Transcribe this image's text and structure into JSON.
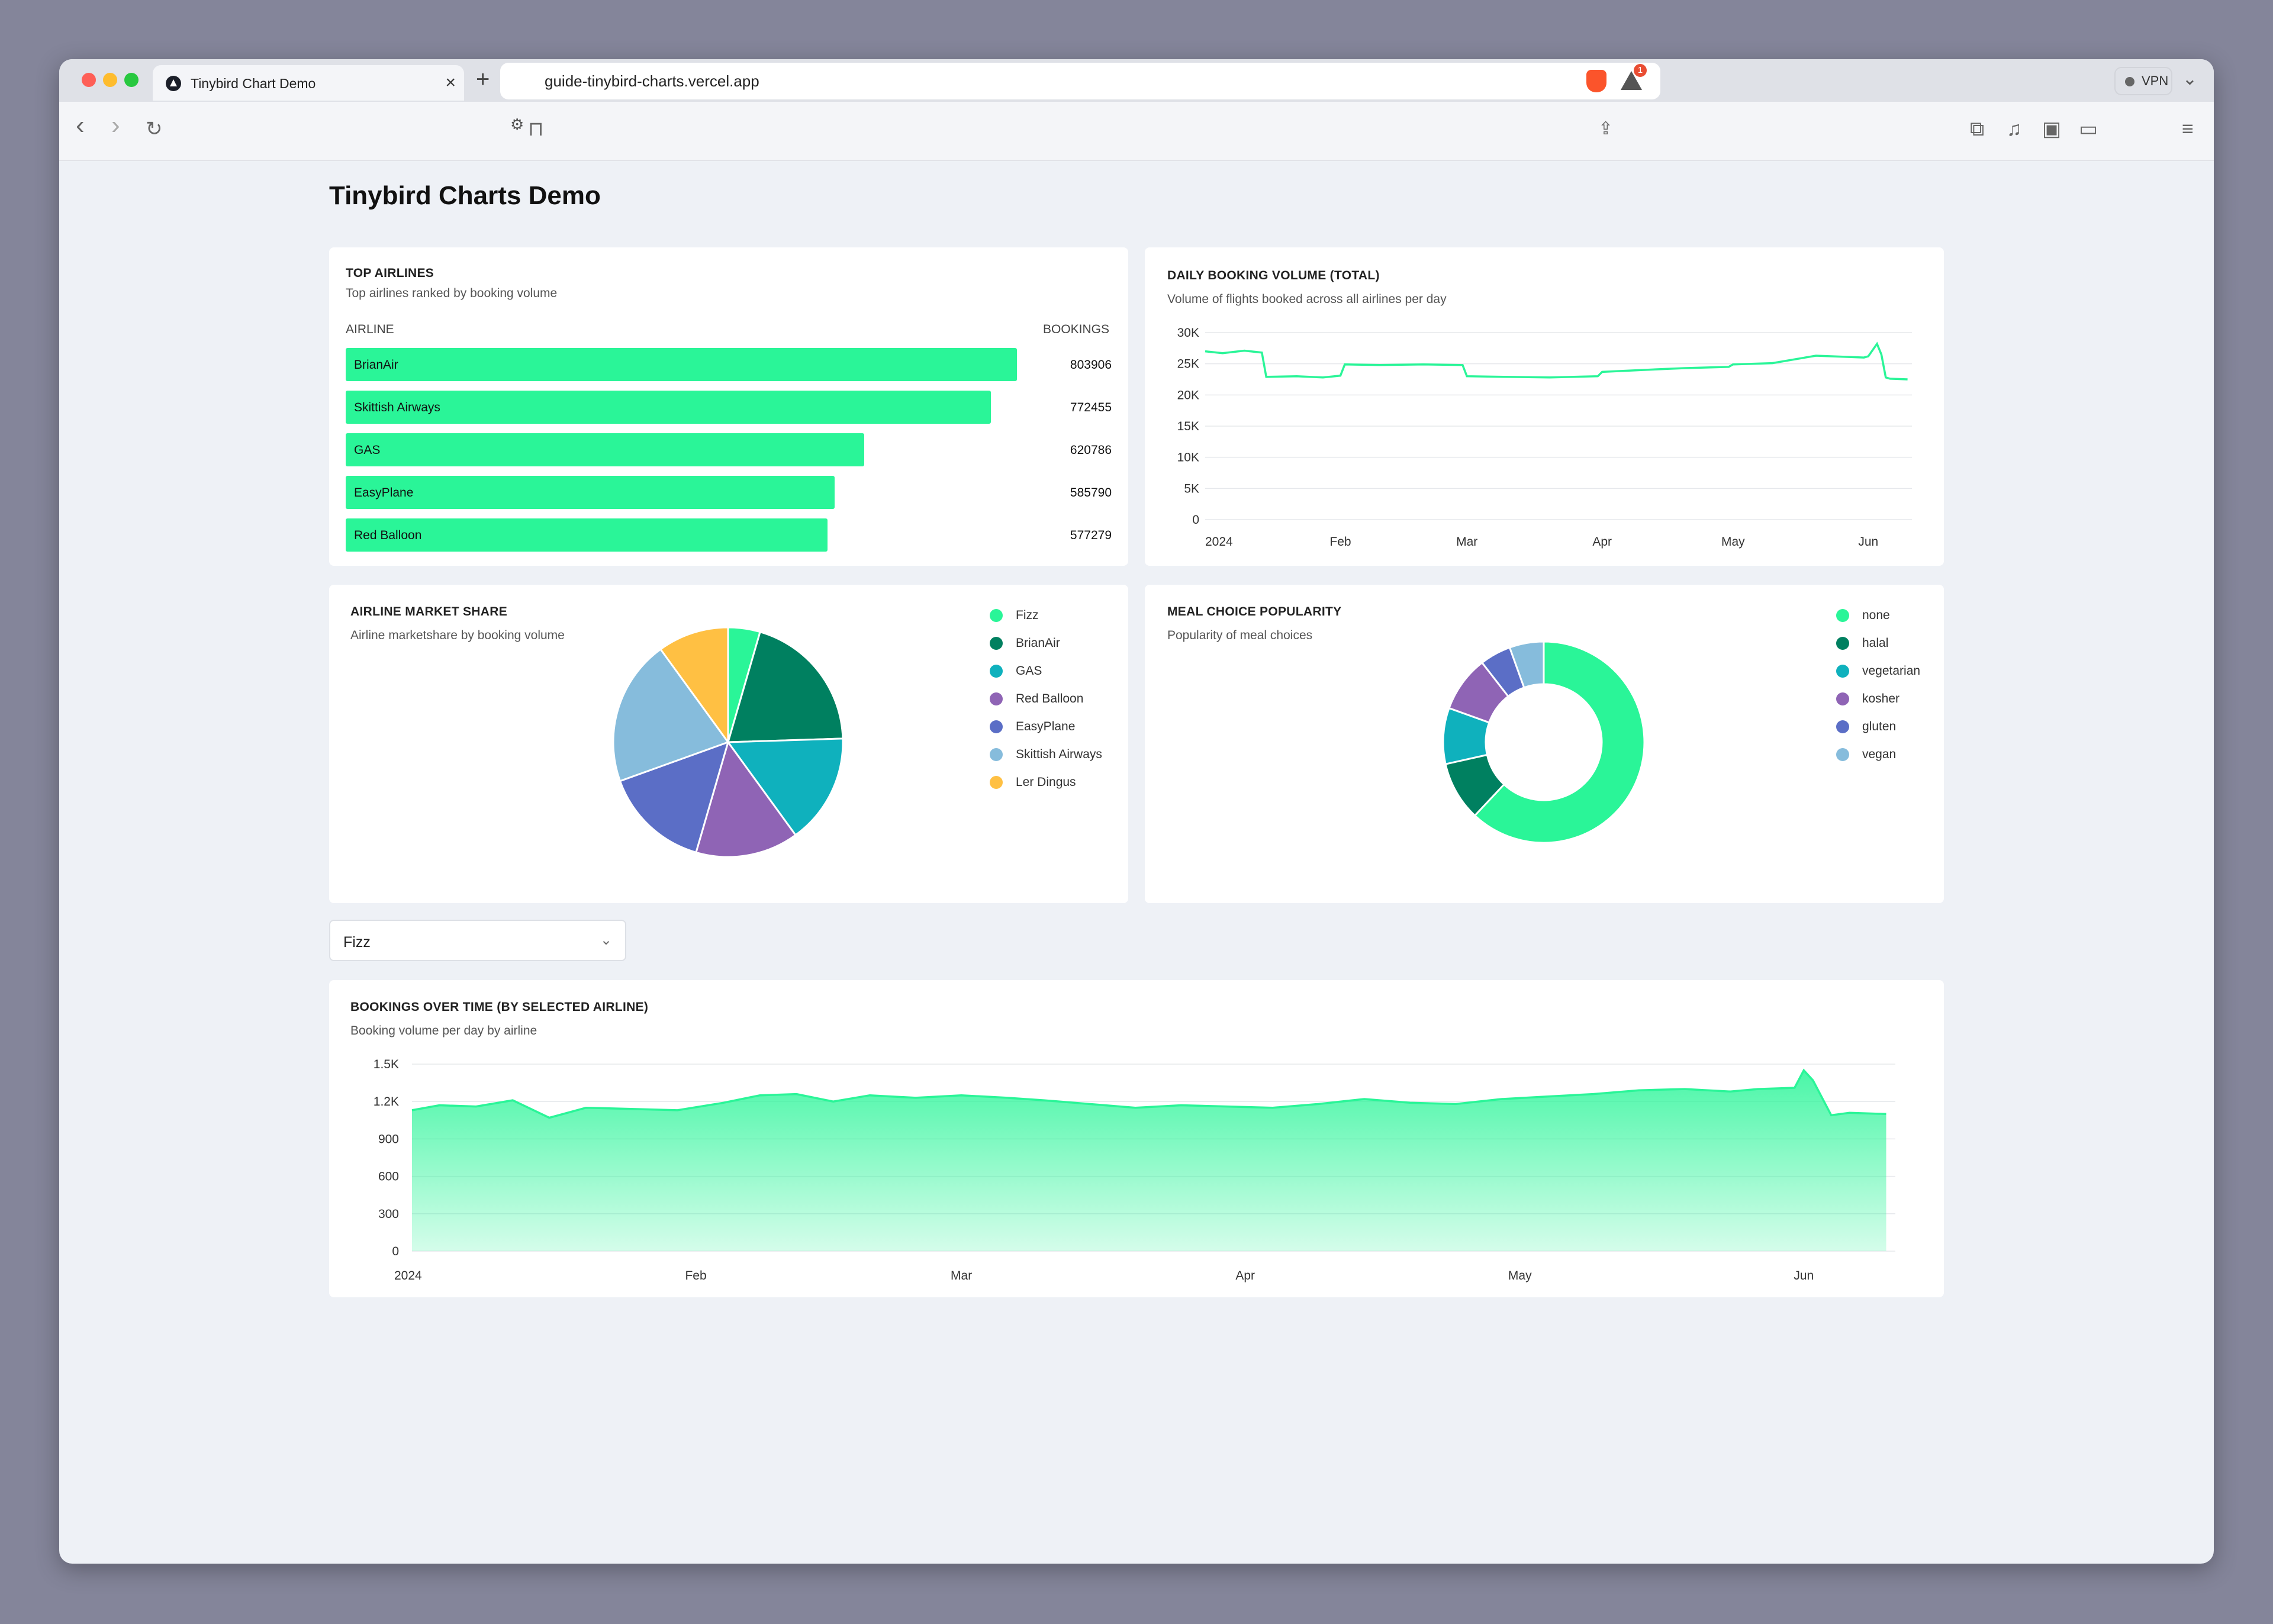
{
  "browser": {
    "tab_title": "Tinybird Chart Demo",
    "tab_close": "×",
    "new_tab": "+",
    "tab_dropdown": "⌄",
    "url": "guide-tinybird-charts.vercel.app",
    "alert_count": "1",
    "vpn_label": "VPN",
    "icons": {
      "back": "‹",
      "forward": "›",
      "reload": "↻",
      "bookmark": "⊓",
      "site_settings": "⚙",
      "share": "⇪",
      "extensions": "⧉",
      "media": "♫",
      "sidebar": "▣",
      "wallet": "▭",
      "menu": "≡"
    }
  },
  "page": {
    "title": "Tinybird Charts Demo"
  },
  "top_airlines": {
    "title": "TOP AIRLINES",
    "subtitle": "Top airlines ranked by booking volume",
    "col_airline": "AIRLINE",
    "col_bookings": "BOOKINGS",
    "rows": [
      {
        "airline": "BrianAir",
        "bookings": "803906",
        "value": 803906
      },
      {
        "airline": "Skittish Airways",
        "bookings": "772455",
        "value": 772455
      },
      {
        "airline": "GAS",
        "bookings": "620786",
        "value": 620786
      },
      {
        "airline": "EasyPlane",
        "bookings": "585790",
        "value": 585790
      },
      {
        "airline": "Red Balloon",
        "bookings": "577279",
        "value": 577279
      }
    ]
  },
  "daily_booking": {
    "title": "DAILY BOOKING VOLUME (TOTAL)",
    "subtitle": "Volume of flights booked across all airlines per day"
  },
  "market_share": {
    "title": "AIRLINE MARKET SHARE",
    "subtitle": "Airline marketshare by booking volume"
  },
  "meal_choice": {
    "title": "MEAL CHOICE POPULARITY",
    "subtitle": "Popularity of meal choices"
  },
  "selector": {
    "value": "Fizz",
    "chevron": "⌄"
  },
  "bookings_over_time": {
    "title": "BOOKINGS OVER TIME (BY SELECTED AIRLINE)",
    "subtitle": "Booking volume per day by airline"
  },
  "colors": {
    "accent": "#2af598"
  },
  "chart_data": [
    {
      "id": "top_airlines",
      "type": "bar",
      "categories": [
        "BrianAir",
        "Skittish Airways",
        "GAS",
        "EasyPlane",
        "Red Balloon"
      ],
      "values": [
        803906,
        772455,
        620786,
        585790,
        577279
      ],
      "color": "#2af598"
    },
    {
      "id": "daily_booking",
      "type": "line",
      "x_ticks": [
        "2024",
        "Feb",
        "Mar",
        "Apr",
        "May",
        "Jun"
      ],
      "y_ticks": [
        "0",
        "5K",
        "10K",
        "15K",
        "20K",
        "25K",
        "30K"
      ],
      "ylim": [
        0,
        30000
      ],
      "grid": true,
      "color": "#2af598",
      "series": [
        {
          "x": [
            "2024-01-01",
            "2024-01-05",
            "2024-01-10",
            "2024-01-14",
            "2024-01-15",
            "2024-01-22",
            "2024-01-28",
            "2024-02-01",
            "2024-02-02",
            "2024-02-10",
            "2024-02-20",
            "2024-02-29",
            "2024-03-01",
            "2024-03-10",
            "2024-03-20",
            "2024-03-31",
            "2024-04-01",
            "2024-04-10",
            "2024-04-20",
            "2024-04-30",
            "2024-05-01",
            "2024-05-10",
            "2024-05-20",
            "2024-05-31",
            "2024-06-01",
            "2024-06-03",
            "2024-06-04",
            "2024-06-05",
            "2024-06-06",
            "2024-06-10"
          ],
          "values": [
            27000,
            26700,
            27100,
            26800,
            22900,
            23000,
            22800,
            23100,
            24900,
            24800,
            24900,
            24800,
            23000,
            22900,
            22800,
            23000,
            23700,
            24000,
            24300,
            24500,
            24900,
            25100,
            26300,
            26000,
            26200,
            28200,
            26500,
            22800,
            22600,
            22500
          ]
        }
      ]
    },
    {
      "id": "market_share",
      "type": "pie",
      "labels": [
        "Fizz",
        "BrianAir",
        "GAS",
        "Red Balloon",
        "EasyPlane",
        "Skittish Airways",
        "Ler Dingus"
      ],
      "values": [
        4.5,
        20,
        15.5,
        14.5,
        15,
        20.5,
        10
      ],
      "colors": [
        "#2af598",
        "#008060",
        "#0fb1bd",
        "#8f64b5",
        "#5b6ec6",
        "#86bcdc",
        "#ffc043"
      ],
      "legend": "right"
    },
    {
      "id": "meal_choice",
      "type": "pie",
      "donut": true,
      "labels": [
        "none",
        "halal",
        "vegetarian",
        "kosher",
        "gluten",
        "vegan"
      ],
      "values": [
        62,
        9.5,
        9,
        9,
        5,
        5.5
      ],
      "colors": [
        "#2af598",
        "#008060",
        "#0fb1bd",
        "#8f64b5",
        "#5b6ec6",
        "#86bcdc"
      ],
      "legend": "right"
    },
    {
      "id": "bookings_over_time",
      "type": "area",
      "series_name": "Fizz",
      "x_ticks": [
        "2024",
        "Feb",
        "Mar",
        "Apr",
        "May",
        "Jun"
      ],
      "y_ticks": [
        "0",
        "300",
        "600",
        "900",
        "1.2K",
        "1.5K"
      ],
      "ylim": [
        0,
        1500
      ],
      "grid": true,
      "color": "#2af598",
      "series": [
        {
          "x": [
            "2024-01-01",
            "2024-01-04",
            "2024-01-08",
            "2024-01-12",
            "2024-01-16",
            "2024-01-20",
            "2024-01-25",
            "2024-01-30",
            "2024-02-04",
            "2024-02-08",
            "2024-02-12",
            "2024-02-16",
            "2024-02-20",
            "2024-02-25",
            "2024-03-01",
            "2024-03-06",
            "2024-03-10",
            "2024-03-15",
            "2024-03-20",
            "2024-03-25",
            "2024-03-30",
            "2024-04-04",
            "2024-04-09",
            "2024-04-14",
            "2024-04-19",
            "2024-04-24",
            "2024-04-29",
            "2024-05-04",
            "2024-05-09",
            "2024-05-14",
            "2024-05-19",
            "2024-05-24",
            "2024-05-27",
            "2024-05-31",
            "2024-06-01",
            "2024-06-02",
            "2024-06-04",
            "2024-06-06",
            "2024-06-10"
          ],
          "values": [
            1130,
            1170,
            1160,
            1210,
            1070,
            1150,
            1140,
            1130,
            1190,
            1250,
            1260,
            1200,
            1250,
            1230,
            1250,
            1230,
            1210,
            1180,
            1150,
            1170,
            1160,
            1150,
            1180,
            1220,
            1190,
            1180,
            1220,
            1240,
            1260,
            1290,
            1300,
            1280,
            1300,
            1310,
            1450,
            1370,
            1090,
            1110,
            1100
          ]
        }
      ]
    }
  ]
}
